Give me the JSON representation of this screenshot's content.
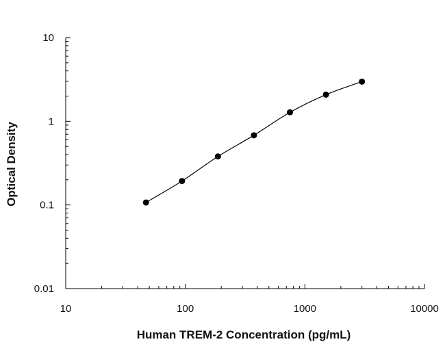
{
  "chart_data": {
    "type": "scatter",
    "title": "",
    "xlabel": "Human TREM-2 Concentration (pg/mL)",
    "ylabel": "Optical Density",
    "x_scale": "log",
    "y_scale": "log",
    "xlim": [
      10,
      10000
    ],
    "ylim": [
      0.01,
      10
    ],
    "x_tick_labels": [
      "10",
      "100",
      "1000",
      "10000"
    ],
    "y_tick_labels": [
      "10",
      "1",
      "0.1",
      "0.01"
    ],
    "grid": false,
    "legend": "none",
    "marker_color": "#000000",
    "series": [
      {
        "x": [
          46.9,
          93.8,
          187.5,
          375,
          750,
          1500,
          3000
        ],
        "y": [
          0.107,
          0.193,
          0.38,
          0.68,
          1.28,
          2.08,
          2.98
        ]
      }
    ]
  }
}
